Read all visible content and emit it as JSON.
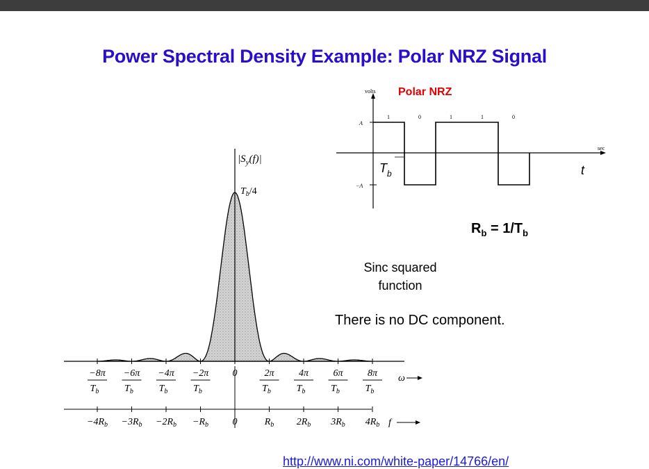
{
  "slide": {
    "title": "Power Spectral Density Example:  Polar NRZ Signal",
    "sinc_line1": "Sinc squared",
    "sinc_line2": "function",
    "no_dc": "There is no DC component.",
    "rb_prefix": "R",
    "rb_sub": "b",
    "rb_mid": " = 1/T",
    "rb_sub2": "b",
    "url": "http://www.ni.com/white-paper/14766/en/"
  },
  "waveform": {
    "label": "Polar NRZ",
    "label_color": "#e00000",
    "y_axis_label": "volts",
    "x_axis_label": "sec",
    "t_label": "t",
    "tb_label": "T",
    "tb_sub": "b",
    "level_pos": "A",
    "level_neg": "−A",
    "bits": [
      "1",
      "0",
      "1",
      "1",
      "0"
    ]
  },
  "psd": {
    "y_label": "|S",
    "y_label_sub": "y",
    "y_label_tail": "(f)|",
    "peak_label": "T",
    "peak_sub": "b",
    "peak_tail": "/4",
    "omega_label": "ω",
    "f_label": "f",
    "omega_ticks": [
      {
        "num": "−8π",
        "den": "T",
        "den_sub": "b"
      },
      {
        "num": "−6π",
        "den": "T",
        "den_sub": "b"
      },
      {
        "num": "−4π",
        "den": "T",
        "den_sub": "b"
      },
      {
        "num": "−2π",
        "den": "T",
        "den_sub": "b"
      },
      {
        "num": "0",
        "den": "",
        "den_sub": ""
      },
      {
        "num": "2π",
        "den": "T",
        "den_sub": "b"
      },
      {
        "num": "4π",
        "den": "T",
        "den_sub": "b"
      },
      {
        "num": "6π",
        "den": "T",
        "den_sub": "b"
      },
      {
        "num": "8π",
        "den": "T",
        "den_sub": "b"
      }
    ],
    "f_ticks": [
      "−4R",
      "−3R",
      "−2R",
      "−R",
      "0",
      "R",
      "2R",
      "3R",
      "4R"
    ],
    "f_tick_sub": "b"
  }
}
